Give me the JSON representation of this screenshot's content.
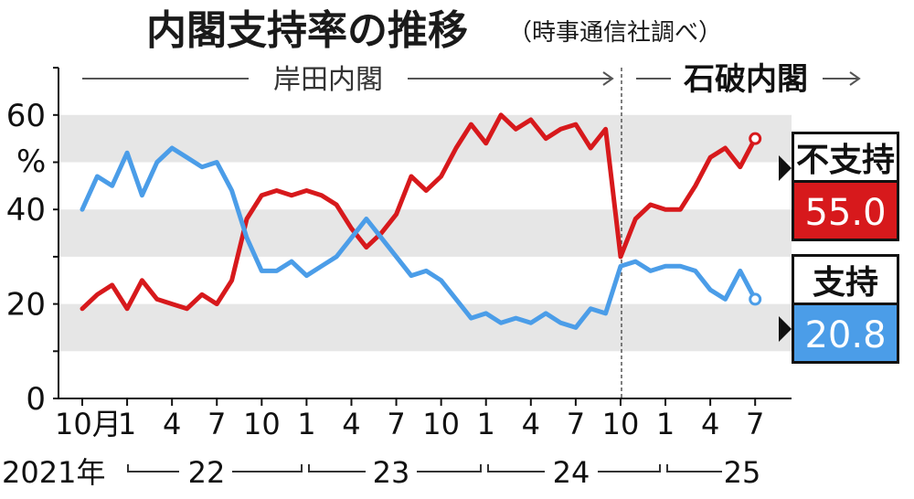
{
  "chart_data": {
    "type": "line",
    "title": "内閣支持率の推移",
    "subtitle": "（時事通信社調べ）",
    "ylabel": "%",
    "ylim": [
      0,
      70
    ],
    "yticks": [
      "0",
      "20",
      "40",
      "60"
    ],
    "x_tick_labels": [
      "10月",
      "1",
      "4",
      "7",
      "10",
      "1",
      "4",
      "7",
      "10",
      "1",
      "4",
      "7",
      "10",
      "1",
      "4",
      "7"
    ],
    "x_tick_index": [
      0,
      3,
      6,
      9,
      12,
      15,
      18,
      21,
      24,
      27,
      30,
      33,
      36,
      39,
      42,
      45
    ],
    "year_labels": [
      "2021年",
      "22",
      "23",
      "24",
      "25"
    ],
    "eras": [
      {
        "label": "岸田内閣"
      },
      {
        "label": "石破内閣"
      }
    ],
    "grid": "horizontal bands",
    "series": [
      {
        "name": "不支持",
        "color": "#d7191c",
        "latest": "55.0",
        "values": [
          19,
          22,
          24,
          19,
          25,
          21,
          20,
          19,
          22,
          20,
          25,
          38,
          43,
          44,
          43,
          44,
          43,
          41,
          36,
          32,
          35,
          39,
          47,
          44,
          47,
          53,
          58,
          54,
          60,
          57,
          59,
          55,
          57,
          58,
          53,
          57,
          30,
          38,
          41,
          40,
          40,
          45,
          51,
          53,
          49,
          55
        ]
      },
      {
        "name": "支持",
        "color": "#4b9de8",
        "latest": "20.8",
        "values": [
          40,
          47,
          45,
          52,
          43,
          50,
          53,
          51,
          49,
          50,
          44,
          34,
          27,
          27,
          29,
          26,
          28,
          30,
          34,
          38,
          34,
          30,
          26,
          27,
          25,
          21,
          17,
          18,
          16,
          17,
          16,
          18,
          16,
          15,
          19,
          18,
          28,
          29,
          27,
          28,
          28,
          27,
          23,
          21,
          27,
          21
        ]
      }
    ]
  }
}
